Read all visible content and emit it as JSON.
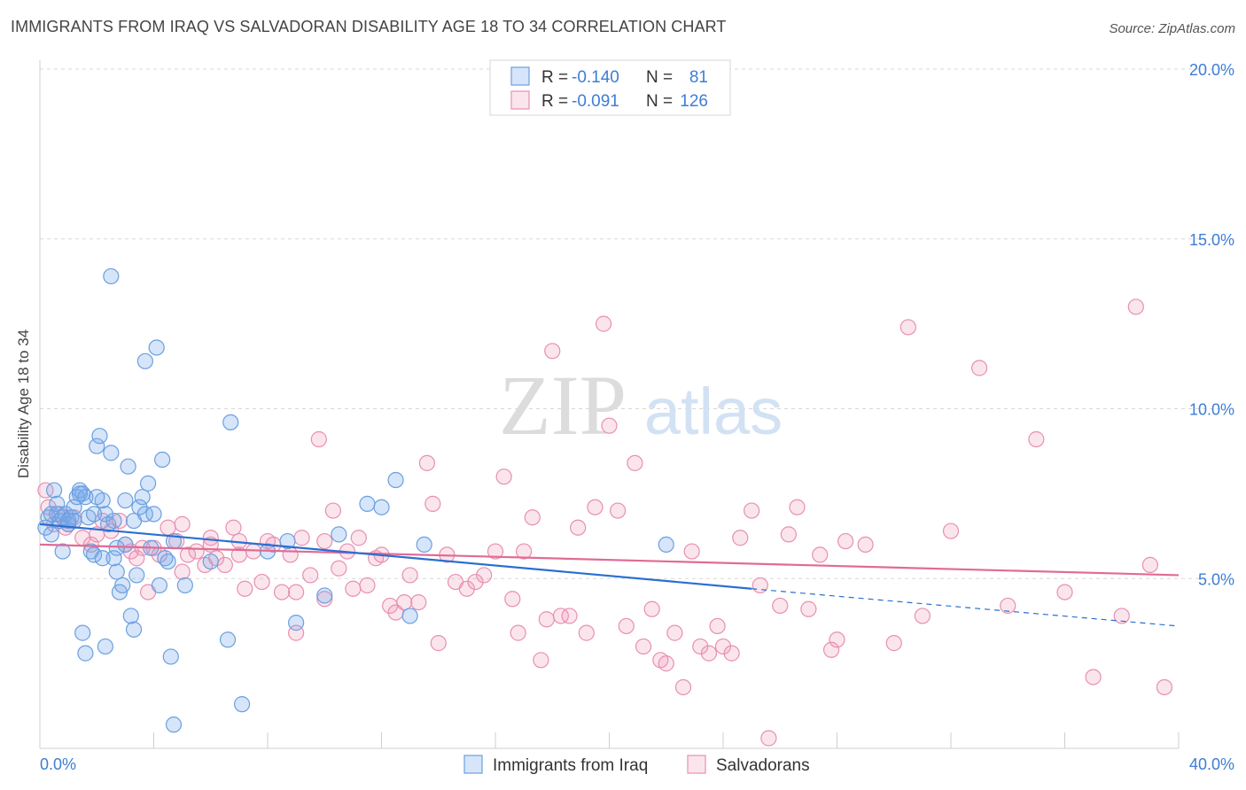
{
  "title": "IMMIGRANTS FROM IRAQ VS SALVADORAN DISABILITY AGE 18 TO 34 CORRELATION CHART",
  "source": "Source: ZipAtlas.com",
  "watermark": {
    "zip": "ZIP",
    "atlas": "atlas"
  },
  "colors": {
    "iraq_fill": "rgba(120,170,235,0.30)",
    "iraq_stroke": "#6b9fe0",
    "iraq_line": "#2a6fd0",
    "salv_fill": "rgba(240,150,185,0.25)",
    "salv_stroke": "#e88fb0",
    "salv_line": "#e06b96",
    "tick_text": "#3d7dd6",
    "grid": "#d8d8d8"
  },
  "legend": {
    "rows": [
      {
        "r_label": "R =",
        "r_value": "-0.140",
        "n_label": "N =",
        "n_value": "81"
      },
      {
        "r_label": "R =",
        "r_value": "-0.091",
        "n_label": "N =",
        "n_value": "126"
      }
    ]
  },
  "chart_data": {
    "type": "scatter",
    "title": "IMMIGRANTS FROM IRAQ VS SALVADORAN DISABILITY AGE 18 TO 34 CORRELATION CHART",
    "xlabel": "",
    "ylabel": "Disability Age 18 to 34",
    "xlim": [
      0,
      40
    ],
    "ylim": [
      0,
      20
    ],
    "x_tick_labels": [
      "0.0%",
      "40.0%"
    ],
    "y_ticks": [
      5,
      10,
      15,
      20
    ],
    "y_tick_labels": [
      "5.0%",
      "10.0%",
      "15.0%",
      "20.0%"
    ],
    "grid": true,
    "legend_position": "top-center",
    "series": [
      {
        "name": "Immigrants from Iraq",
        "r": -0.14,
        "n": 81,
        "trend": {
          "x0": 0,
          "y0": 6.6,
          "x1": 25,
          "y1": 4.7,
          "dash_to_x": 40,
          "dash_to_y": 3.6
        },
        "points": [
          [
            0.2,
            6.5
          ],
          [
            0.3,
            6.8
          ],
          [
            0.4,
            6.9
          ],
          [
            0.5,
            7.6
          ],
          [
            0.6,
            7.2
          ],
          [
            0.7,
            6.7
          ],
          [
            0.8,
            6.8
          ],
          [
            0.9,
            6.9
          ],
          [
            1.0,
            6.6
          ],
          [
            1.1,
            6.8
          ],
          [
            1.2,
            7.1
          ],
          [
            1.3,
            7.4
          ],
          [
            1.4,
            7.6
          ],
          [
            1.5,
            7.5
          ],
          [
            1.6,
            7.4
          ],
          [
            1.7,
            6.8
          ],
          [
            1.8,
            5.8
          ],
          [
            1.9,
            5.7
          ],
          [
            2.0,
            8.9
          ],
          [
            2.1,
            9.2
          ],
          [
            2.2,
            7.3
          ],
          [
            2.3,
            6.9
          ],
          [
            2.4,
            6.6
          ],
          [
            2.5,
            8.7
          ],
          [
            2.6,
            5.6
          ],
          [
            2.7,
            5.2
          ],
          [
            2.8,
            4.6
          ],
          [
            2.9,
            4.8
          ],
          [
            3.0,
            6.0
          ],
          [
            3.1,
            8.3
          ],
          [
            3.2,
            3.9
          ],
          [
            3.3,
            3.5
          ],
          [
            3.4,
            5.1
          ],
          [
            3.5,
            7.1
          ],
          [
            3.6,
            7.4
          ],
          [
            3.7,
            6.9
          ],
          [
            3.8,
            7.8
          ],
          [
            3.9,
            5.9
          ],
          [
            4.0,
            6.9
          ],
          [
            4.1,
            11.8
          ],
          [
            4.2,
            4.8
          ],
          [
            4.3,
            8.5
          ],
          [
            4.4,
            5.6
          ],
          [
            4.5,
            5.5
          ],
          [
            4.6,
            2.7
          ],
          [
            4.7,
            6.1
          ],
          [
            2.5,
            13.9
          ],
          [
            3.7,
            11.4
          ],
          [
            3.0,
            7.3
          ],
          [
            2.0,
            7.4
          ],
          [
            1.2,
            6.7
          ],
          [
            0.8,
            5.8
          ],
          [
            1.5,
            3.4
          ],
          [
            1.6,
            2.8
          ],
          [
            2.3,
            3.0
          ],
          [
            3.3,
            6.7
          ],
          [
            2.7,
            5.9
          ],
          [
            2.2,
            5.6
          ],
          [
            5.1,
            4.8
          ],
          [
            6.7,
            9.6
          ],
          [
            6.6,
            3.2
          ],
          [
            7.1,
            1.3
          ],
          [
            4.7,
            0.7
          ],
          [
            6.0,
            5.5
          ],
          [
            8.0,
            5.8
          ],
          [
            8.7,
            6.1
          ],
          [
            9.0,
            3.7
          ],
          [
            10.0,
            4.5
          ],
          [
            10.5,
            6.3
          ],
          [
            11.5,
            7.2
          ],
          [
            12.0,
            7.1
          ],
          [
            12.5,
            7.9
          ],
          [
            13.0,
            3.9
          ],
          [
            13.5,
            6.0
          ],
          [
            22.0,
            6.0
          ],
          [
            0.4,
            6.3
          ],
          [
            0.6,
            6.9
          ],
          [
            1.0,
            6.7
          ],
          [
            1.4,
            7.5
          ],
          [
            1.9,
            6.9
          ],
          [
            2.6,
            6.7
          ]
        ]
      },
      {
        "name": "Salvadorans",
        "r": -0.091,
        "n": 126,
        "trend": {
          "x0": 0,
          "y0": 6.0,
          "x1": 40,
          "y1": 5.1
        },
        "points": [
          [
            0.2,
            7.6
          ],
          [
            0.3,
            7.1
          ],
          [
            0.5,
            6.6
          ],
          [
            0.7,
            6.9
          ],
          [
            0.9,
            6.5
          ],
          [
            1.0,
            6.6
          ],
          [
            1.2,
            6.8
          ],
          [
            1.5,
            6.2
          ],
          [
            1.8,
            6.0
          ],
          [
            2.0,
            6.3
          ],
          [
            2.2,
            6.7
          ],
          [
            2.5,
            6.4
          ],
          [
            2.8,
            6.7
          ],
          [
            3.0,
            6.0
          ],
          [
            3.2,
            5.8
          ],
          [
            3.4,
            5.6
          ],
          [
            3.6,
            5.9
          ],
          [
            3.8,
            4.6
          ],
          [
            4.0,
            5.9
          ],
          [
            4.2,
            5.7
          ],
          [
            4.5,
            6.5
          ],
          [
            4.8,
            6.1
          ],
          [
            5.0,
            6.6
          ],
          [
            5.2,
            5.7
          ],
          [
            5.5,
            5.8
          ],
          [
            5.8,
            5.4
          ],
          [
            6.0,
            6.2
          ],
          [
            6.2,
            5.6
          ],
          [
            6.5,
            5.4
          ],
          [
            6.8,
            6.5
          ],
          [
            7.0,
            5.7
          ],
          [
            7.2,
            4.7
          ],
          [
            7.5,
            5.8
          ],
          [
            7.8,
            4.9
          ],
          [
            8.0,
            6.1
          ],
          [
            8.2,
            6.0
          ],
          [
            8.5,
            4.6
          ],
          [
            8.8,
            5.7
          ],
          [
            9.0,
            3.4
          ],
          [
            9.2,
            6.2
          ],
          [
            9.5,
            5.1
          ],
          [
            9.8,
            9.1
          ],
          [
            10.0,
            4.4
          ],
          [
            10.3,
            7.0
          ],
          [
            10.5,
            5.3
          ],
          [
            10.8,
            5.8
          ],
          [
            11.0,
            4.7
          ],
          [
            11.2,
            6.2
          ],
          [
            11.5,
            4.8
          ],
          [
            11.8,
            5.6
          ],
          [
            12.0,
            5.7
          ],
          [
            12.3,
            4.2
          ],
          [
            12.5,
            4.0
          ],
          [
            12.8,
            4.3
          ],
          [
            13.0,
            5.1
          ],
          [
            13.3,
            4.3
          ],
          [
            13.6,
            8.4
          ],
          [
            13.8,
            7.2
          ],
          [
            14.0,
            3.1
          ],
          [
            14.3,
            5.7
          ],
          [
            14.6,
            4.9
          ],
          [
            15.0,
            4.7
          ],
          [
            15.3,
            4.9
          ],
          [
            15.6,
            5.1
          ],
          [
            16.0,
            5.8
          ],
          [
            16.3,
            8.0
          ],
          [
            16.6,
            4.4
          ],
          [
            16.8,
            3.4
          ],
          [
            17.0,
            5.8
          ],
          [
            17.3,
            6.8
          ],
          [
            17.6,
            2.6
          ],
          [
            17.8,
            3.8
          ],
          [
            18.0,
            11.7
          ],
          [
            18.3,
            3.9
          ],
          [
            18.6,
            3.9
          ],
          [
            18.9,
            6.5
          ],
          [
            19.2,
            3.4
          ],
          [
            19.5,
            7.1
          ],
          [
            19.8,
            12.5
          ],
          [
            20.0,
            9.5
          ],
          [
            20.3,
            7.0
          ],
          [
            20.6,
            3.6
          ],
          [
            20.9,
            8.4
          ],
          [
            21.2,
            3.0
          ],
          [
            21.5,
            4.1
          ],
          [
            21.8,
            2.6
          ],
          [
            22.0,
            2.5
          ],
          [
            22.3,
            3.4
          ],
          [
            22.6,
            1.8
          ],
          [
            22.9,
            5.8
          ],
          [
            23.2,
            3.0
          ],
          [
            23.5,
            2.8
          ],
          [
            23.8,
            3.6
          ],
          [
            24.0,
            3.0
          ],
          [
            24.3,
            2.8
          ],
          [
            24.6,
            6.2
          ],
          [
            25.0,
            7.0
          ],
          [
            25.3,
            4.8
          ],
          [
            25.6,
            0.3
          ],
          [
            26.0,
            4.2
          ],
          [
            26.3,
            6.3
          ],
          [
            26.6,
            7.1
          ],
          [
            27.0,
            4.1
          ],
          [
            27.4,
            5.7
          ],
          [
            27.8,
            2.9
          ],
          [
            28.0,
            3.2
          ],
          [
            28.3,
            6.1
          ],
          [
            29.0,
            6.0
          ],
          [
            30.0,
            3.1
          ],
          [
            30.5,
            12.4
          ],
          [
            31.0,
            3.9
          ],
          [
            32.0,
            6.4
          ],
          [
            33.0,
            11.2
          ],
          [
            34.0,
            4.2
          ],
          [
            35.0,
            9.1
          ],
          [
            36.0,
            4.6
          ],
          [
            37.0,
            2.1
          ],
          [
            38.0,
            3.9
          ],
          [
            38.5,
            13.0
          ],
          [
            39.0,
            5.4
          ],
          [
            39.5,
            1.8
          ],
          [
            5.0,
            5.2
          ],
          [
            6.0,
            6.0
          ],
          [
            7.0,
            6.1
          ],
          [
            9.0,
            4.6
          ],
          [
            10.0,
            6.1
          ]
        ]
      }
    ]
  }
}
